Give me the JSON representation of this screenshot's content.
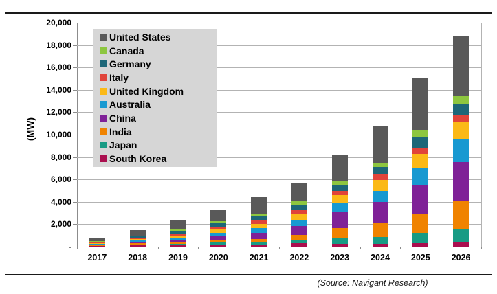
{
  "page": {
    "source_note": "(Source: Navigant Research)"
  },
  "chart_data": {
    "type": "bar",
    "stacked": true,
    "title": "",
    "xlabel": "",
    "ylabel": "(MW)",
    "ylim": [
      0,
      20000
    ],
    "grid": true,
    "legend_position": "upper-left-inside",
    "legend_background": "#d6d6d6",
    "categories": [
      "2017",
      "2018",
      "2019",
      "2020",
      "2021",
      "2022",
      "2023",
      "2024",
      "2025",
      "2026"
    ],
    "yticks": [
      {
        "value": 0,
        "label": "-"
      },
      {
        "value": 2000,
        "label": "2,000"
      },
      {
        "value": 4000,
        "label": "4,000"
      },
      {
        "value": 6000,
        "label": "6,000"
      },
      {
        "value": 8000,
        "label": "8,000"
      },
      {
        "value": 10000,
        "label": "10,000"
      },
      {
        "value": 12000,
        "label": "12,000"
      },
      {
        "value": 14000,
        "label": "14,000"
      },
      {
        "value": 16000,
        "label": "16,000"
      },
      {
        "value": 18000,
        "label": "18,000"
      },
      {
        "value": 20000,
        "label": "20,000"
      }
    ],
    "series": [
      {
        "name": "South Korea",
        "color": "#aa0e4e",
        "values": [
          50,
          110,
          125,
          205,
          185,
          290,
          245,
          240,
          310,
          385
        ]
      },
      {
        "name": "Japan",
        "color": "#189b84",
        "values": [
          50,
          90,
          140,
          205,
          225,
          265,
          510,
          620,
          900,
          1190
        ]
      },
      {
        "name": "India",
        "color": "#f08300",
        "values": [
          40,
          80,
          125,
          200,
          280,
          510,
          920,
          1225,
          1755,
          2555
        ]
      },
      {
        "name": "China",
        "color": "#7f2197",
        "values": [
          70,
          140,
          185,
          325,
          535,
          760,
          1435,
          1900,
          2540,
          3435
        ]
      },
      {
        "name": "Australia",
        "color": "#1899d1",
        "values": [
          55,
          110,
          165,
          290,
          450,
          570,
          815,
          960,
          1490,
          1985
        ]
      },
      {
        "name": "United Kingdom",
        "color": "#fbb917",
        "values": [
          75,
          150,
          245,
          325,
          370,
          510,
          655,
          1020,
          1290,
          1570
        ]
      },
      {
        "name": "Italy",
        "color": "#e0443a",
        "values": [
          50,
          100,
          165,
          245,
          330,
          350,
          405,
          515,
          550,
          580
        ]
      },
      {
        "name": "Germany",
        "color": "#1d6778",
        "values": [
          65,
          130,
          220,
          290,
          325,
          470,
          535,
          655,
          920,
          1060
        ]
      },
      {
        "name": "Canada",
        "color": "#8dc63f",
        "values": [
          30,
          60,
          145,
          165,
          245,
          305,
          290,
          370,
          655,
          675
        ]
      },
      {
        "name": "United States",
        "color": "#595959",
        "values": [
          245,
          480,
          880,
          1060,
          1455,
          1675,
          2410,
          3315,
          4620,
          5415
        ]
      }
    ],
    "legend_order_top_to_bottom": [
      "United States",
      "Canada",
      "Germany",
      "Italy",
      "United Kingdom",
      "Australia",
      "China",
      "India",
      "Japan",
      "South Korea"
    ],
    "totals": [
      730,
      1450,
      2395,
      3310,
      4400,
      5705,
      8220,
      10820,
      15030,
      18850
    ]
  }
}
